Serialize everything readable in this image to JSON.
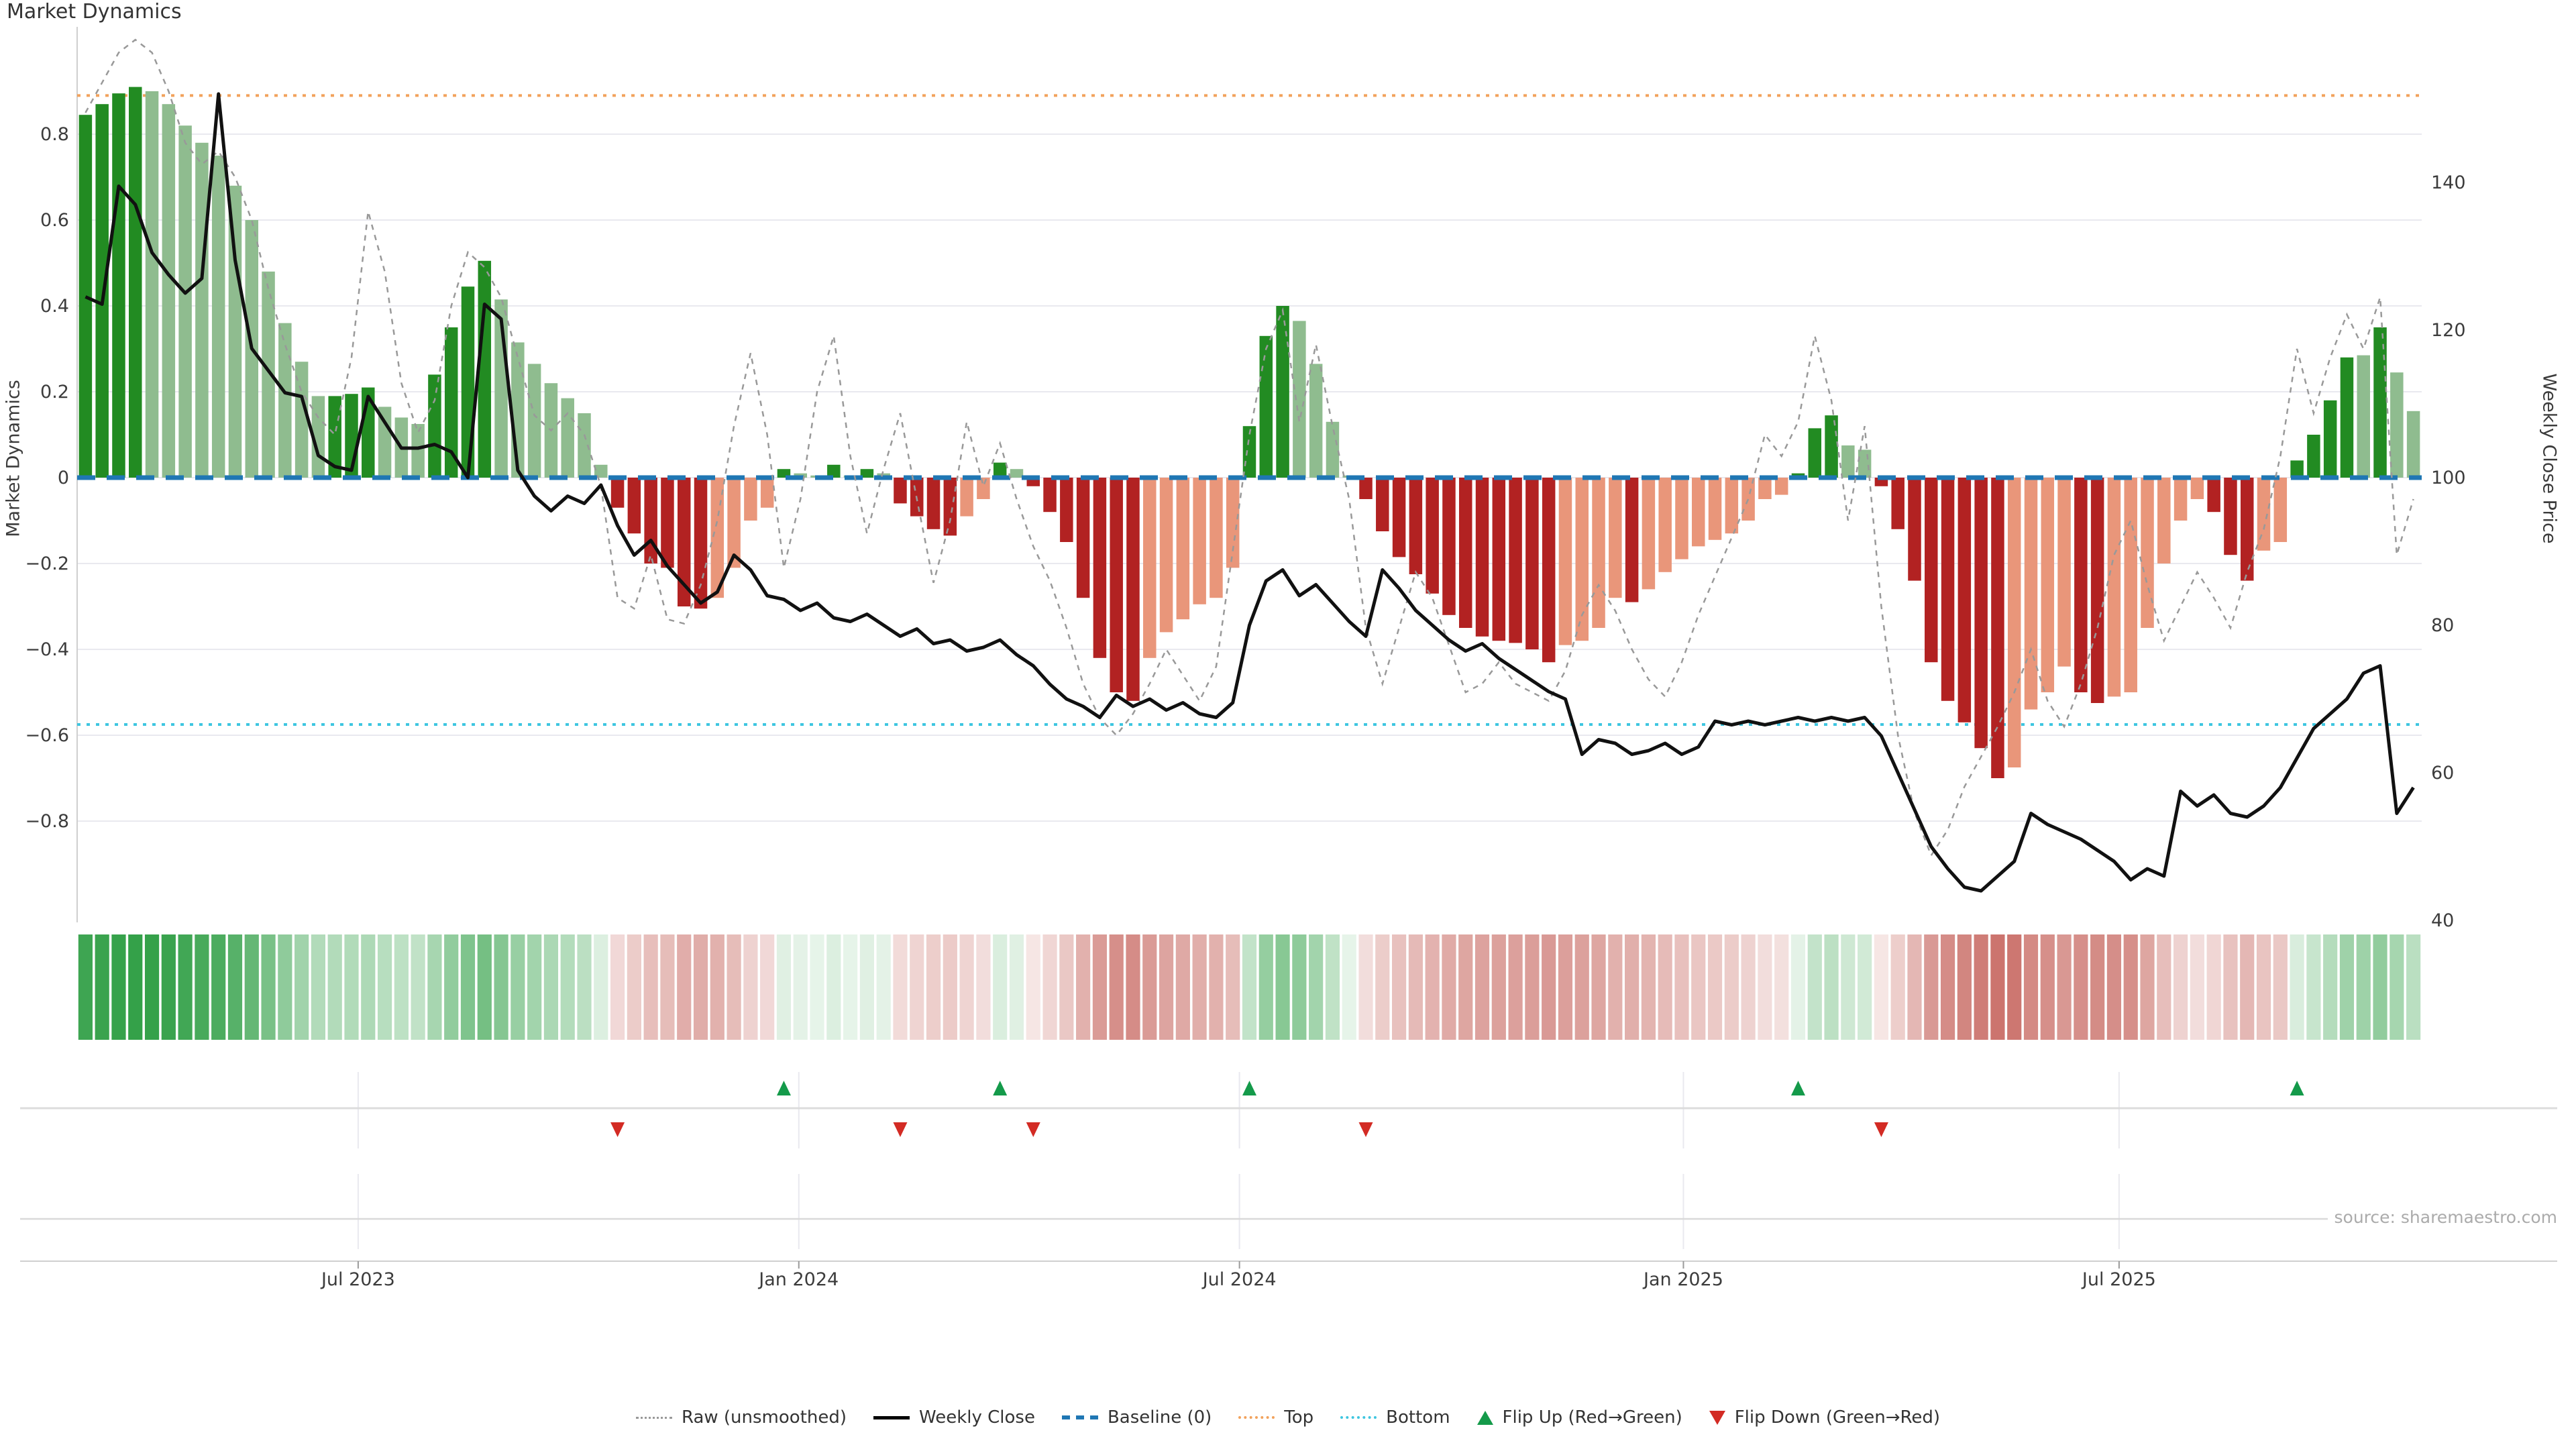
{
  "title": "Market Dynamics",
  "source_note": "source: sharemaestro.com",
  "axes": {
    "left": {
      "label": "Market Dynamics",
      "tick_labels": [
        "0.8",
        "0.6",
        "0.4",
        "0.2",
        "0",
        "−0.2",
        "−0.4",
        "−0.6",
        "−0.8"
      ],
      "tick_values": [
        0.8,
        0.6,
        0.4,
        0.2,
        0,
        -0.2,
        -0.4,
        -0.6,
        -0.8
      ]
    },
    "right": {
      "label": "Weekly Close Price",
      "tick_labels": [
        "140",
        "120",
        "100",
        "80",
        "60",
        "40"
      ],
      "tick_values": [
        140,
        120,
        100,
        80,
        60,
        40
      ]
    },
    "x": {
      "tick_labels": [
        "Jul 2023",
        "Jan 2024",
        "Jul 2024",
        "Jan 2025",
        "Jul 2025"
      ],
      "tick_bar_index": [
        16.4,
        42.9,
        69.4,
        96.1,
        122.3
      ]
    }
  },
  "legend": {
    "items": [
      {
        "label": "Raw (unsmoothed)",
        "glyph": "dotted-line",
        "color": "#999999"
      },
      {
        "label": "Weekly Close",
        "glyph": "solid-line",
        "color": "#000000"
      },
      {
        "label": "Baseline (0)",
        "glyph": "dashed-line",
        "color": "#1f77b4"
      },
      {
        "label": "Top",
        "glyph": "dotted-line",
        "color": "#f2a25c"
      },
      {
        "label": "Bottom",
        "glyph": "dotted-line",
        "color": "#3ec6e0"
      },
      {
        "label": "Flip Up (Red→Green)",
        "glyph": "triangle-up",
        "color": "#149a4a"
      },
      {
        "label": "Flip Down (Green→Red)",
        "glyph": "triangle-down",
        "color": "#d32b24"
      }
    ]
  },
  "colors": {
    "bar_green_dark": "#228b22",
    "bar_green_light": "#8fbc8f",
    "bar_red_dark": "#b22222",
    "bar_red_light": "#e9967a",
    "weekly_close": "#111111",
    "raw": "#999999",
    "baseline": "#1f77b4",
    "top_line": "#f2a25c",
    "bottom_line": "#3ec6e0",
    "flip_up": "#149a4a",
    "flip_down": "#d32b24",
    "heat_green": "#2e9e44",
    "heat_red": "#c0554d",
    "grid": "#e9e9ef",
    "spine": "#cfcfcf",
    "tick_text": "#3c3c3c"
  },
  "chart_data": {
    "type": "bar",
    "title": "Market Dynamics",
    "xlabel": "",
    "ylabel_left": "Market Dynamics",
    "ylabel_right": "Weekly Close Price",
    "left_ylim": [
      -1.04,
      1.05
    ],
    "right_ylim": [
      39.7,
      161.1
    ],
    "grid": "horizontal-only",
    "legend_position": "bottom-center",
    "n_weeks": 141,
    "reference_lines": {
      "baseline": 0,
      "top": 0.89,
      "bottom": -0.575
    },
    "flip_up_indices": [
      42,
      55,
      70,
      103,
      133
    ],
    "flip_down_indices": [
      32,
      49,
      57,
      77,
      108
    ],
    "series": [
      {
        "name": "Market Dynamics bars",
        "type": "bar",
        "values": [
          0.845,
          0.87,
          0.895,
          0.91,
          0.9,
          0.87,
          0.82,
          0.78,
          0.75,
          0.68,
          0.6,
          0.48,
          0.36,
          0.27,
          0.19,
          0.19,
          0.195,
          0.21,
          0.165,
          0.14,
          0.125,
          0.24,
          0.35,
          0.445,
          0.505,
          0.415,
          0.315,
          0.265,
          0.22,
          0.185,
          0.15,
          0.03,
          -0.07,
          -0.13,
          -0.2,
          -0.21,
          -0.3,
          -0.305,
          -0.28,
          -0.21,
          -0.1,
          -0.07,
          0.02,
          0.01,
          0.005,
          0.03,
          0.005,
          0.02,
          0.01,
          -0.06,
          -0.09,
          -0.12,
          -0.135,
          -0.09,
          -0.05,
          0.035,
          0.02,
          -0.02,
          -0.08,
          -0.15,
          -0.28,
          -0.42,
          -0.5,
          -0.52,
          -0.42,
          -0.36,
          -0.33,
          -0.295,
          -0.28,
          -0.21,
          0.12,
          0.33,
          0.4,
          0.365,
          0.265,
          0.13,
          0.005,
          -0.05,
          -0.125,
          -0.185,
          -0.225,
          -0.27,
          -0.32,
          -0.35,
          -0.37,
          -0.38,
          -0.385,
          -0.4,
          -0.43,
          -0.39,
          -0.38,
          -0.35,
          -0.28,
          -0.29,
          -0.26,
          -0.22,
          -0.19,
          -0.16,
          -0.145,
          -0.13,
          -0.1,
          -0.05,
          -0.04,
          0.01,
          0.115,
          0.145,
          0.075,
          0.065,
          -0.02,
          -0.12,
          -0.24,
          -0.43,
          -0.52,
          -0.57,
          -0.63,
          -0.7,
          -0.675,
          -0.54,
          -0.5,
          -0.44,
          -0.5,
          -0.525,
          -0.51,
          -0.5,
          -0.35,
          -0.2,
          -0.1,
          -0.05,
          -0.08,
          -0.18,
          -0.24,
          -0.17,
          -0.15,
          0.04,
          0.1,
          0.18,
          0.28,
          0.285,
          0.35,
          0.245,
          0.155
        ],
        "shade": [
          "D",
          "D",
          "D",
          "D",
          "L",
          "L",
          "L",
          "L",
          "L",
          "L",
          "L",
          "L",
          "L",
          "L",
          "L",
          "D",
          "D",
          "D",
          "L",
          "L",
          "L",
          "D",
          "D",
          "D",
          "D",
          "L",
          "L",
          "L",
          "L",
          "L",
          "L",
          "L",
          "D",
          "D",
          "D",
          "D",
          "D",
          "D",
          "L",
          "L",
          "L",
          "L",
          "D",
          "L",
          "L",
          "D",
          "L",
          "D",
          "L",
          "D",
          "D",
          "D",
          "D",
          "L",
          "L",
          "D",
          "L",
          "D",
          "D",
          "D",
          "D",
          "D",
          "D",
          "D",
          "L",
          "L",
          "L",
          "L",
          "L",
          "L",
          "D",
          "D",
          "D",
          "L",
          "L",
          "L",
          "L",
          "D",
          "D",
          "D",
          "D",
          "D",
          "D",
          "D",
          "D",
          "D",
          "D",
          "D",
          "D",
          "L",
          "L",
          "L",
          "L",
          "D",
          "L",
          "L",
          "L",
          "L",
          "L",
          "L",
          "L",
          "L",
          "L",
          "D",
          "D",
          "D",
          "L",
          "L",
          "D",
          "D",
          "D",
          "D",
          "D",
          "D",
          "D",
          "D",
          "L",
          "L",
          "L",
          "L",
          "D",
          "D",
          "L",
          "L",
          "L",
          "L",
          "L",
          "L",
          "D",
          "D",
          "D",
          "L",
          "L",
          "D",
          "D",
          "D",
          "D",
          "L",
          "D",
          "L",
          "L"
        ]
      },
      {
        "name": "Weekly Close",
        "type": "line",
        "axis": "right",
        "values": [
          124.5,
          123.5,
          139.5,
          137,
          130.5,
          127.5,
          125,
          127,
          152,
          129.5,
          117.5,
          114.5,
          111.5,
          111,
          103,
          101.5,
          101,
          111,
          107.5,
          104,
          104,
          104.5,
          103.5,
          100,
          123.5,
          121.5,
          101,
          97.5,
          95.5,
          97.5,
          96.5,
          99,
          93.5,
          89.5,
          91.5,
          88,
          85.5,
          83,
          84.5,
          89.5,
          87.5,
          84,
          83.5,
          82,
          83,
          81,
          80.5,
          81.5,
          80,
          78.5,
          79.5,
          77.5,
          78,
          76.5,
          77,
          78,
          76,
          74.5,
          72,
          70,
          69,
          67.5,
          70.5,
          69,
          70,
          68.5,
          69.5,
          68,
          67.5,
          69.5,
          80,
          86,
          87.5,
          84,
          85.5,
          83,
          80.5,
          78.5,
          87.5,
          85,
          82,
          80,
          78,
          76.5,
          77.5,
          75.5,
          74,
          72.5,
          71,
          70,
          62.5,
          64.5,
          64,
          62.5,
          63,
          64,
          62.5,
          63.5,
          67,
          66.5,
          67,
          66.5,
          67,
          67.5,
          67,
          67.5,
          67,
          67.5,
          65,
          60,
          55,
          50,
          47,
          44.5,
          44,
          46,
          48,
          54.5,
          53,
          52,
          51,
          49.5,
          48,
          45.5,
          47,
          46,
          57.5,
          55.5,
          57,
          54.5,
          54,
          55.5,
          58,
          62,
          66,
          68,
          70,
          73.5,
          74.5,
          54.5,
          58
        ]
      },
      {
        "name": "Raw (unsmoothed)",
        "type": "line",
        "axis": "left",
        "values": [
          0.85,
          0.92,
          0.99,
          1.02,
          0.99,
          0.9,
          0.78,
          0.73,
          0.76,
          0.7,
          0.6,
          0.44,
          0.31,
          0.2,
          0.14,
          0.1,
          0.28,
          0.62,
          0.48,
          0.22,
          0.105,
          0.18,
          0.4,
          0.525,
          0.49,
          0.42,
          0.28,
          0.145,
          0.11,
          0.15,
          0.1,
          -0.02,
          -0.28,
          -0.305,
          -0.18,
          -0.33,
          -0.34,
          -0.25,
          -0.1,
          0.12,
          0.29,
          0.1,
          -0.21,
          -0.05,
          0.2,
          0.33,
          0.05,
          -0.13,
          0.02,
          0.15,
          -0.05,
          -0.245,
          -0.1,
          0.13,
          -0.02,
          0.08,
          -0.05,
          -0.16,
          -0.24,
          -0.35,
          -0.48,
          -0.56,
          -0.6,
          -0.55,
          -0.48,
          -0.4,
          -0.46,
          -0.52,
          -0.44,
          -0.17,
          0.1,
          0.3,
          0.39,
          0.13,
          0.31,
          0.12,
          -0.05,
          -0.35,
          -0.48,
          -0.35,
          -0.22,
          -0.28,
          -0.39,
          -0.5,
          -0.48,
          -0.43,
          -0.48,
          -0.5,
          -0.52,
          -0.45,
          -0.32,
          -0.25,
          -0.31,
          -0.4,
          -0.47,
          -0.51,
          -0.43,
          -0.32,
          -0.23,
          -0.14,
          -0.05,
          0.1,
          0.05,
          0.13,
          0.33,
          0.18,
          -0.1,
          0.12,
          -0.3,
          -0.6,
          -0.78,
          -0.88,
          -0.82,
          -0.72,
          -0.65,
          -0.58,
          -0.5,
          -0.4,
          -0.52,
          -0.58,
          -0.48,
          -0.35,
          -0.18,
          -0.1,
          -0.25,
          -0.38,
          -0.3,
          -0.22,
          -0.28,
          -0.35,
          -0.22,
          -0.12,
          0.05,
          0.3,
          0.15,
          0.28,
          0.38,
          0.3,
          0.42,
          -0.18,
          -0.05
        ]
      }
    ]
  }
}
